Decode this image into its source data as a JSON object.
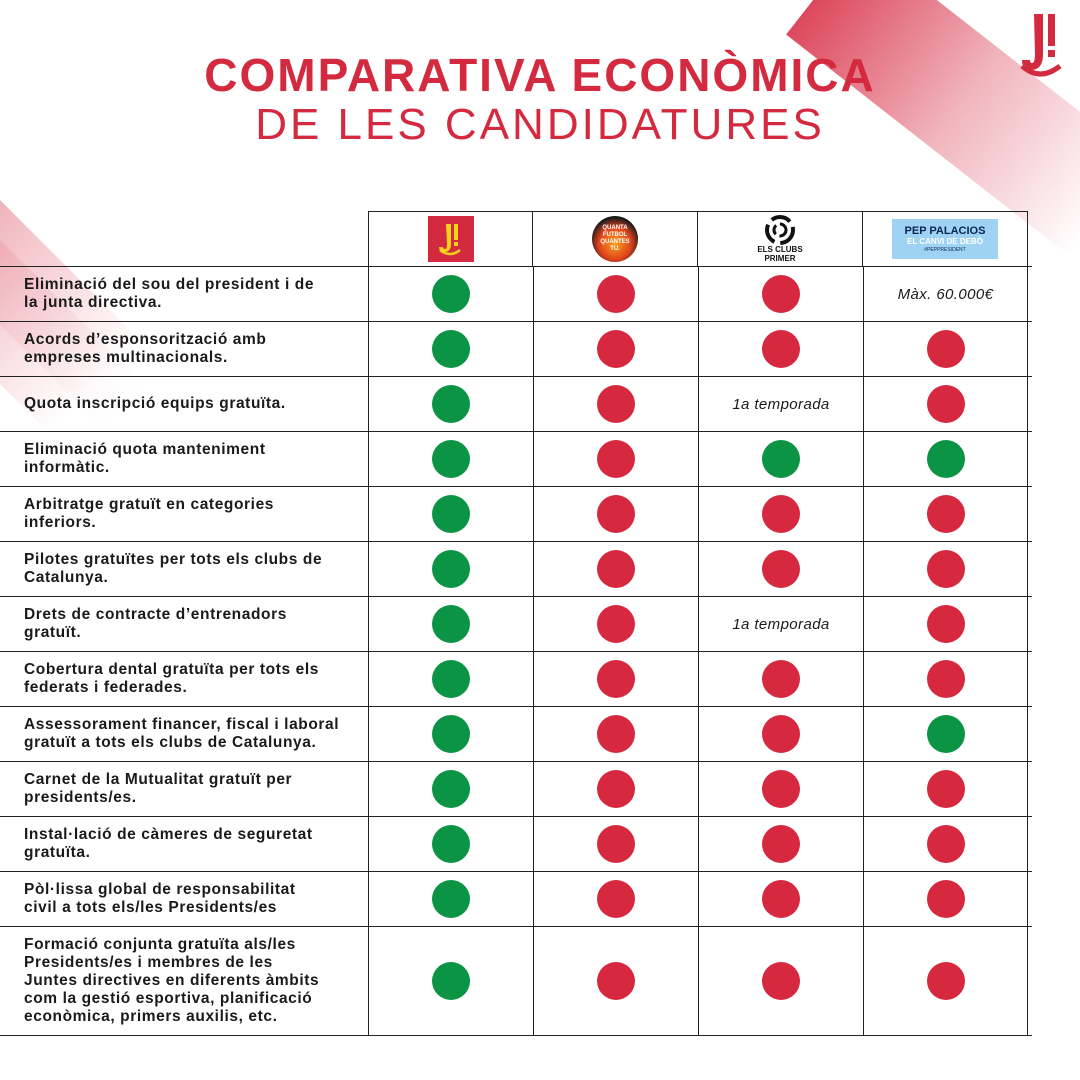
{
  "title": {
    "line1": "COMPARATIVA ECONÒMICA",
    "line2": "DE LES CANDIDATURES"
  },
  "colors": {
    "brand_red": "#d42a3f",
    "yes_green": "#0b9444",
    "no_red": "#d6283f"
  },
  "candidates": [
    {
      "id": "j",
      "logo_icon": "j-logo-icon"
    },
    {
      "id": "quanta",
      "logo_icon": "quanta-futbol-logo-icon",
      "logo_text": [
        "QUANTA",
        "FUTBOL",
        "QUANTES",
        "TU."
      ]
    },
    {
      "id": "clubs",
      "logo_icon": "els-clubs-primer-logo-icon",
      "logo_text": [
        "ELS CLUBS",
        "PRIMER"
      ]
    },
    {
      "id": "pep",
      "logo_icon": "pep-palacios-logo-icon",
      "logo_text": [
        "PEP PALACIOS",
        "EL CANVI DE DEBÒ",
        "#PEPPRESIDENT"
      ]
    }
  ],
  "rows": [
    {
      "label": [
        "Eliminació del sou del president i de",
        "la junta directiva."
      ],
      "values": [
        "yes",
        "no",
        "no",
        "Màx. 60.000€"
      ]
    },
    {
      "label": [
        "Acords d’esponsorització amb",
        "empreses multinacionals."
      ],
      "values": [
        "yes",
        "no",
        "no",
        "no"
      ]
    },
    {
      "label": [
        "Quota inscripció equips gratuïta."
      ],
      "values": [
        "yes",
        "no",
        "1a temporada",
        "no"
      ]
    },
    {
      "label": [
        "Eliminació quota manteniment",
        "informàtic."
      ],
      "values": [
        "yes",
        "no",
        "yes",
        "yes"
      ]
    },
    {
      "label": [
        "Arbitratge gratuït en categories",
        "inferiors."
      ],
      "values": [
        "yes",
        "no",
        "no",
        "no"
      ]
    },
    {
      "label": [
        "Pilotes gratuïtes per tots els clubs de",
        "Catalunya."
      ],
      "values": [
        "yes",
        "no",
        "no",
        "no"
      ]
    },
    {
      "label": [
        "Drets de contracte d’entrenadors",
        "gratuït."
      ],
      "values": [
        "yes",
        "no",
        "1a temporada",
        "no"
      ]
    },
    {
      "label": [
        "Cobertura dental gratuïta per tots els",
        "federats i federades."
      ],
      "values": [
        "yes",
        "no",
        "no",
        "no"
      ]
    },
    {
      "label": [
        "Assessorament financer, fiscal i laboral",
        "gratuït a tots els clubs de Catalunya."
      ],
      "values": [
        "yes",
        "no",
        "no",
        "yes"
      ]
    },
    {
      "label": [
        "Carnet de la Mutualitat gratuït per",
        "presidents/es."
      ],
      "values": [
        "yes",
        "no",
        "no",
        "no"
      ]
    },
    {
      "label": [
        "Instal·lació de càmeres de seguretat",
        "gratuïta."
      ],
      "values": [
        "yes",
        "no",
        "no",
        "no"
      ]
    },
    {
      "label": [
        "Pòl·lissa global de responsabilitat",
        "civil a tots els/les Presidents/es"
      ],
      "values": [
        "yes",
        "no",
        "no",
        "no"
      ]
    },
    {
      "label": [
        "Formació conjunta gratuïta als/les",
        "Presidents/es i membres de les",
        "Juntes directives en diferents àmbits",
        "com la gestió esportiva, planificació",
        "econòmica, primers auxilis, etc."
      ],
      "values": [
        "yes",
        "no",
        "no",
        "no"
      ]
    }
  ]
}
